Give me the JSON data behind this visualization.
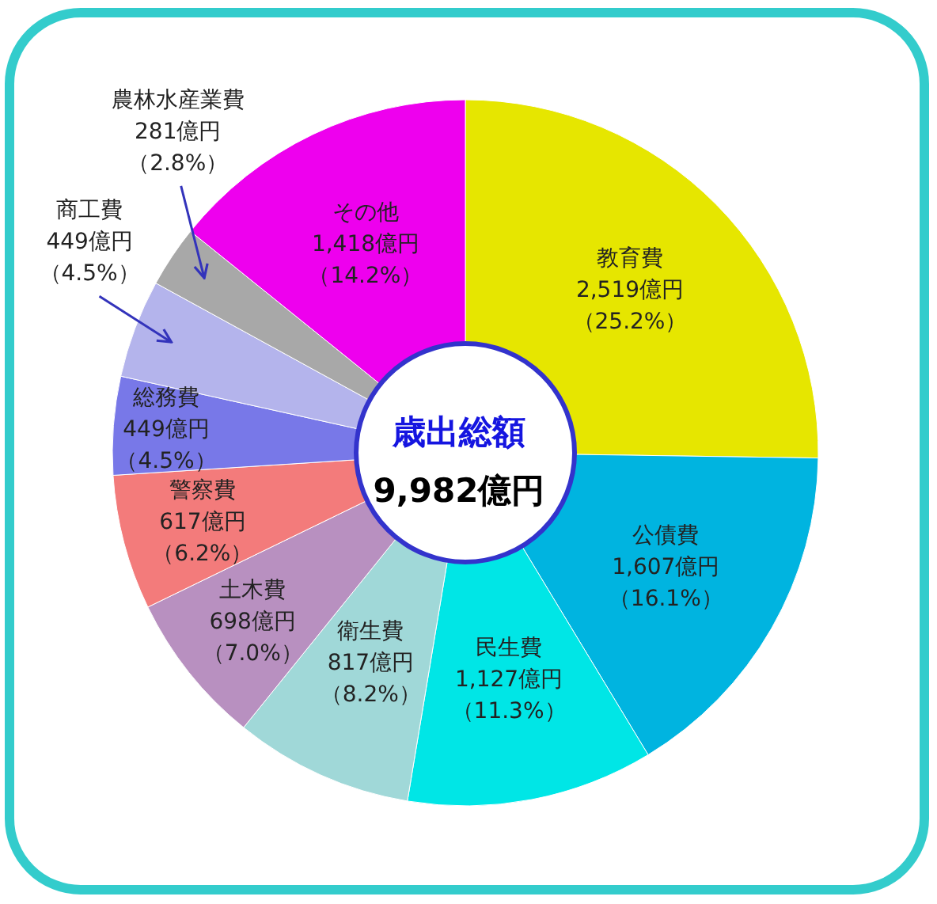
{
  "chart_data": {
    "type": "donut",
    "title": "歳出総額",
    "subtitle": "9,982億円",
    "categories": [
      "教育費",
      "公債費",
      "民生費",
      "衛生費",
      "土木費",
      "警察費",
      "総務費",
      "商工費",
      "農林水産業費",
      "その他"
    ],
    "values": [
      2519,
      1607,
      1127,
      817,
      698,
      617,
      449,
      449,
      281,
      1418
    ],
    "value_labels": [
      "2,519億円（25.2%）",
      "1,607億円（16.1%）",
      "1,127億円（11.3%）",
      "817億円（8.2%）",
      "698億円（7.0%）",
      "617億円（6.2%）",
      "449億円（4.5%）",
      "449億円（4.5%）",
      "281億円（2.8%）",
      "1,418億円（14.2%）"
    ],
    "colors": [
      "#e6e600",
      "#00b4e0",
      "#00e6e6",
      "#a0d8d8",
      "#b890c0",
      "#f37b7b",
      "#7878e8",
      "#b4b4ec",
      "#a8a8a8",
      "#ee00ee"
    ]
  }
}
